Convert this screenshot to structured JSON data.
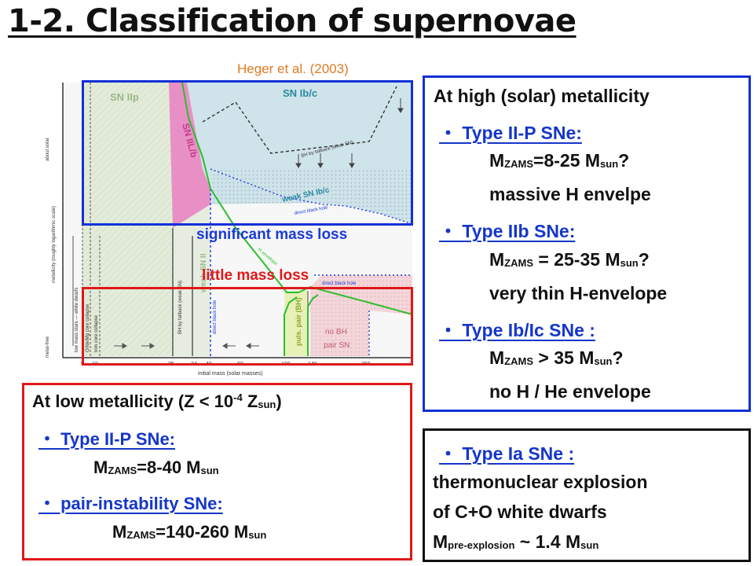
{
  "slide": {
    "title": "1-2. Classification of supernovae",
    "citation": "Heger et al. (2003)"
  },
  "figure": {
    "region_labels": {
      "sn_iip": "SN IIp",
      "sn_ibc": "SN Ib/c",
      "sn_iil_b": "SN IIL/b",
      "weak_sn_ibc": "weak SN Ib/c",
      "weak_sn_ii": "weak SN II",
      "bh_by_fallback_weak": "BH by fallback (weak SN)",
      "direct_black_hole": "direct black hole",
      "h_envelope": "H envelope",
      "puls_pair": "puls. pair (BH)",
      "no_bh": "no BH",
      "pair_sn": "pair SN",
      "low_mass_stars": "low mass stars — white dwarfs",
      "o_ne_mg_collapse": "O/Ne/Mg core collapse",
      "iron_core_collapse": "iron core collapse",
      "bh_by_fallback": "BH by fallback (weak SN)"
    },
    "y_axis_label": "metallicity (roughly logarithmic scale)",
    "y_ticks": [
      "about solar",
      "metal-free"
    ],
    "x_axis_label": "initial mass (solar masses)",
    "x_ticks": [
      "9",
      "10",
      "25",
      "34",
      "40",
      "60",
      "100",
      "140",
      "260"
    ],
    "annotation_significant": "significant mass loss",
    "annotation_little": "little mass loss"
  },
  "high_metallicity_panel": {
    "heading": "At high (solar) metallicity",
    "items": [
      {
        "type_label": "・ Type II-P SNe:",
        "lines": [
          {
            "pre": "M",
            "sub": "ZAMS",
            "mid": "=8-25 M",
            "sub2": "sun",
            "post": "?"
          },
          {
            "text": "massive H envelpe"
          }
        ]
      },
      {
        "type_label": "・ Type IIb SNe:",
        "lines": [
          {
            "pre": "M",
            "sub": "ZAMS",
            "mid": " = 25-35 M",
            "sub2": "sun",
            "post": "?"
          },
          {
            "text": "very thin H-envelope"
          }
        ]
      },
      {
        "type_label": "・ Type Ib/Ic SNe :",
        "lines": [
          {
            "pre": "M",
            "sub": "ZAMS",
            "mid": " > 35 M",
            "sub2": "sun",
            "post": "?"
          },
          {
            "text": "no H / He envelope"
          }
        ]
      }
    ]
  },
  "low_metallicity_panel": {
    "heading_pre": "At low metallicity (Z < 10",
    "heading_sup": "-4",
    "heading_mid": " Z",
    "heading_sub": "sun",
    "heading_post": ")",
    "items": [
      {
        "type_label": "・ Type II-P SNe:",
        "pre": "M",
        "sub": "ZAMS",
        "mid": "=8-40 M",
        "sub2": "sun"
      },
      {
        "type_label": "・ pair-instability SNe:",
        "pre": "M",
        "sub": "ZAMS",
        "mid": "=140-260 M",
        "sub2": "sun"
      }
    ]
  },
  "type_ia_panel": {
    "type_label": "・ Type Ia SNe :",
    "line1": "thermonuclear explosion",
    "line2": "of C+O white dwarfs",
    "line3_pre": "M",
    "line3_sub": "pre-explosion",
    "line3_mid": " ~ 1.4 M",
    "line3_sub2": "sun"
  }
}
